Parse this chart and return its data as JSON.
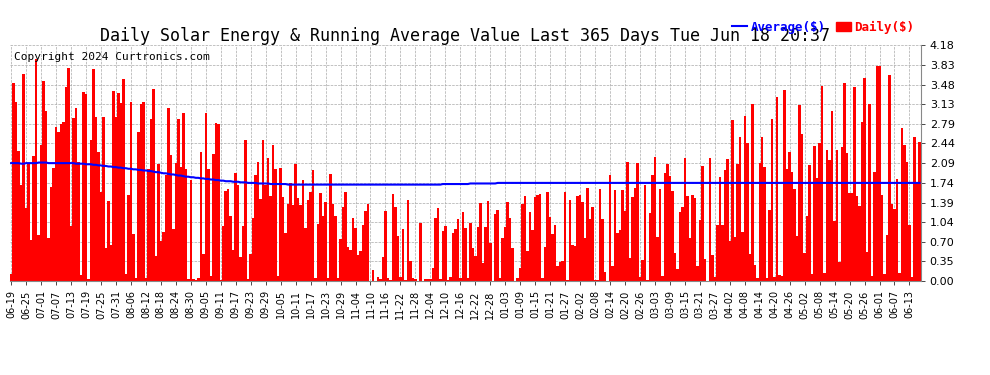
{
  "title": "Daily Solar Energy & Running Average Value Last 365 Days Tue Jun 18 20:37",
  "copyright": "Copyright 2024 Curtronics.com",
  "yticks": [
    0.0,
    0.35,
    0.7,
    1.04,
    1.39,
    1.74,
    2.09,
    2.44,
    2.79,
    3.13,
    3.48,
    3.83,
    4.18
  ],
  "ymin": 0.0,
  "ymax": 4.18,
  "bar_color": "#ff0000",
  "avg_color": "#0000ff",
  "avg_label": "Average($)",
  "daily_label": "Daily($)",
  "title_fontsize": 12,
  "copyright_fontsize": 8,
  "background_color": "#ffffff",
  "grid_color": "#aaaaaa",
  "avg_line_values": [
    2.09,
    2.09,
    2.09,
    2.09,
    2.08,
    2.08,
    2.09,
    2.09,
    2.09,
    2.09,
    2.09,
    2.1,
    2.1,
    2.1,
    2.1,
    2.09,
    2.09,
    2.09,
    2.09,
    2.09,
    2.09,
    2.09,
    2.09,
    2.09,
    2.09,
    2.09,
    2.08,
    2.08,
    2.08,
    2.08,
    2.07,
    2.07,
    2.07,
    2.06,
    2.06,
    2.05,
    2.05,
    2.04,
    2.04,
    2.03,
    2.03,
    2.02,
    2.02,
    2.01,
    2.01,
    2.0,
    2.0,
    1.99,
    1.99,
    1.98,
    1.98,
    1.97,
    1.97,
    1.96,
    1.96,
    1.95,
    1.95,
    1.94,
    1.93,
    1.93,
    1.92,
    1.91,
    1.91,
    1.9,
    1.89,
    1.89,
    1.88,
    1.87,
    1.87,
    1.86,
    1.85,
    1.85,
    1.84,
    1.84,
    1.83,
    1.83,
    1.82,
    1.82,
    1.81,
    1.81,
    1.8,
    1.8,
    1.79,
    1.79,
    1.78,
    1.78,
    1.77,
    1.77,
    1.77,
    1.76,
    1.76,
    1.76,
    1.75,
    1.75,
    1.75,
    1.74,
    1.74,
    1.74,
    1.74,
    1.73,
    1.73,
    1.73,
    1.73,
    1.73,
    1.72,
    1.72,
    1.72,
    1.72,
    1.72,
    1.72,
    1.72,
    1.71,
    1.71,
    1.71,
    1.71,
    1.71,
    1.71,
    1.71,
    1.71,
    1.71,
    1.71,
    1.71,
    1.71,
    1.71,
    1.71,
    1.71,
    1.71,
    1.71,
    1.71,
    1.71,
    1.71,
    1.71,
    1.71,
    1.71,
    1.71,
    1.71,
    1.71,
    1.71,
    1.71,
    1.71,
    1.71,
    1.71,
    1.71,
    1.71,
    1.71,
    1.71,
    1.71,
    1.71,
    1.71,
    1.71,
    1.71,
    1.71,
    1.71,
    1.71,
    1.71,
    1.71,
    1.71,
    1.71,
    1.71,
    1.71,
    1.71,
    1.71,
    1.71,
    1.71,
    1.71,
    1.71,
    1.71,
    1.71,
    1.71,
    1.71,
    1.71,
    1.71,
    1.71,
    1.72,
    1.72,
    1.72,
    1.72,
    1.72,
    1.72,
    1.72,
    1.72,
    1.72,
    1.72,
    1.72,
    1.73,
    1.73,
    1.73,
    1.73,
    1.73,
    1.73,
    1.73,
    1.73,
    1.73,
    1.73,
    1.73,
    1.74,
    1.74,
    1.74,
    1.74,
    1.74,
    1.74,
    1.74,
    1.74,
    1.74,
    1.74,
    1.74,
    1.74,
    1.74,
    1.74,
    1.74,
    1.74,
    1.74,
    1.74,
    1.74,
    1.74,
    1.74,
    1.74,
    1.74,
    1.74,
    1.74,
    1.74,
    1.74,
    1.74,
    1.74,
    1.74,
    1.74,
    1.74,
    1.74,
    1.74,
    1.74,
    1.74,
    1.74,
    1.74,
    1.74,
    1.74,
    1.74,
    1.74,
    1.74,
    1.74,
    1.74,
    1.74,
    1.74,
    1.74,
    1.74,
    1.74,
    1.74,
    1.74,
    1.74,
    1.74,
    1.74,
    1.74,
    1.74,
    1.74,
    1.74,
    1.74,
    1.74,
    1.74,
    1.74,
    1.74,
    1.74,
    1.74,
    1.74,
    1.74,
    1.74,
    1.74,
    1.74,
    1.74,
    1.74,
    1.74,
    1.74,
    1.74,
    1.74,
    1.74,
    1.74,
    1.74,
    1.74,
    1.74,
    1.74,
    1.74,
    1.74,
    1.74,
    1.74,
    1.74,
    1.74,
    1.74,
    1.74,
    1.74,
    1.74,
    1.74,
    1.74,
    1.74,
    1.74,
    1.74,
    1.74,
    1.74,
    1.74,
    1.74,
    1.74,
    1.74,
    1.74,
    1.74,
    1.74,
    1.74,
    1.74,
    1.74,
    1.74,
    1.74,
    1.74,
    1.74,
    1.74,
    1.74,
    1.74,
    1.74,
    1.74,
    1.74,
    1.74,
    1.74,
    1.74,
    1.74,
    1.74,
    1.74,
    1.74,
    1.74,
    1.74,
    1.74,
    1.74,
    1.74,
    1.74,
    1.74,
    1.74,
    1.74,
    1.74,
    1.74,
    1.74,
    1.74,
    1.74,
    1.74,
    1.74,
    1.74,
    1.74,
    1.74,
    1.74,
    1.74,
    1.74,
    1.74,
    1.74,
    1.74,
    1.74,
    1.74,
    1.74,
    1.74,
    1.74,
    1.74,
    1.74,
    1.74,
    1.74,
    1.74,
    1.74,
    1.74,
    1.74,
    1.74,
    1.74,
    1.74,
    1.74,
    1.74
  ],
  "x_labels": [
    "06-19",
    "06-25",
    "07-01",
    "07-07",
    "07-13",
    "07-19",
    "07-25",
    "07-31",
    "08-06",
    "08-12",
    "08-18",
    "08-24",
    "08-30",
    "09-05",
    "09-11",
    "09-17",
    "09-23",
    "09-29",
    "10-05",
    "10-11",
    "10-17",
    "10-23",
    "10-29",
    "11-04",
    "11-10",
    "11-16",
    "11-22",
    "11-28",
    "12-04",
    "12-10",
    "12-16",
    "12-22",
    "12-28",
    "01-03",
    "01-09",
    "01-15",
    "01-21",
    "01-27",
    "02-02",
    "02-08",
    "02-14",
    "02-20",
    "02-26",
    "03-03",
    "03-09",
    "03-15",
    "03-21",
    "03-27",
    "04-02",
    "04-08",
    "04-14",
    "04-20",
    "04-26",
    "05-02",
    "05-08",
    "05-14",
    "05-20",
    "05-26",
    "06-01",
    "06-07",
    "06-13"
  ]
}
